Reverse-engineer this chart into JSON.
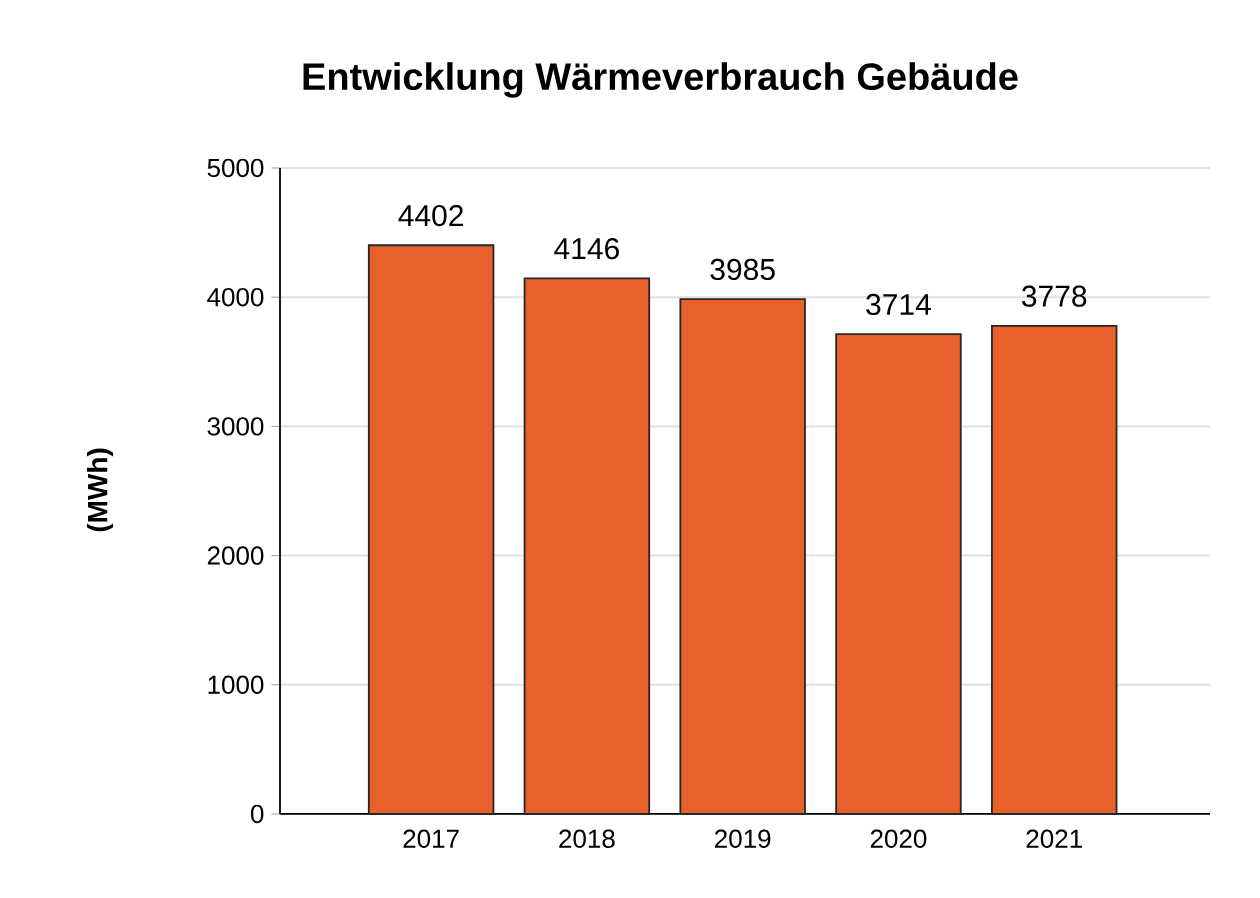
{
  "chart_data": {
    "type": "bar",
    "title": "Entwicklung Wärmeverbrauch Gebäude",
    "ylabel": "(MWh)",
    "categories": [
      "2017",
      "2018",
      "2019",
      "2020",
      "2021"
    ],
    "values": [
      4402,
      4146,
      3985,
      3714,
      3778
    ],
    "color": "#e8602c",
    "ylim": [
      0,
      5000
    ],
    "yticks": [
      0,
      1000,
      2000,
      3000,
      4000,
      5000
    ],
    "grid": "y",
    "data_labels": true
  }
}
